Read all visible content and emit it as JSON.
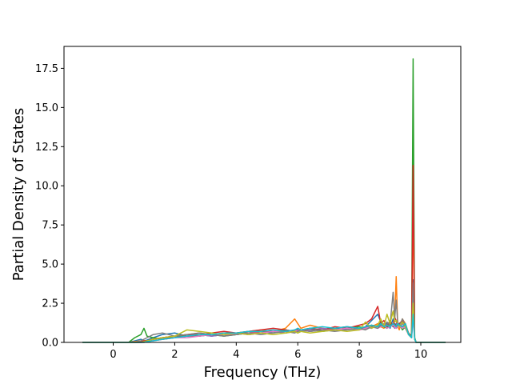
{
  "chart_data": {
    "type": "line",
    "title": "",
    "xlabel": "Frequency (THz)",
    "ylabel": "Partial Density of States",
    "xlim": [
      -1.6,
      11.3
    ],
    "ylim": [
      0,
      18.9
    ],
    "x_ticks": [
      0,
      2,
      4,
      6,
      8,
      10
    ],
    "y_ticks": [
      0.0,
      2.5,
      5.0,
      7.5,
      10.0,
      12.5,
      15.0,
      17.5
    ],
    "x_tick_labels": [
      "0",
      "2",
      "4",
      "6",
      "8",
      "10"
    ],
    "y_tick_labels": [
      "0.0",
      "2.5",
      "5.0",
      "7.5",
      "10.0",
      "12.5",
      "15.0",
      "17.5"
    ],
    "grid": false,
    "legend": "none",
    "x": [
      -1.0,
      0.5,
      0.7,
      0.9,
      1.0,
      1.1,
      1.3,
      1.6,
      2.0,
      2.4,
      2.8,
      3.2,
      3.6,
      4.0,
      4.4,
      4.8,
      5.2,
      5.6,
      5.9,
      6.0,
      6.1,
      6.4,
      6.8,
      7.2,
      7.6,
      8.0,
      8.2,
      8.4,
      8.6,
      8.7,
      8.8,
      8.9,
      9.0,
      9.1,
      9.15,
      9.2,
      9.25,
      9.3,
      9.4,
      9.5,
      9.6,
      9.7,
      9.75,
      9.8,
      9.85,
      10.0,
      10.4,
      10.8
    ],
    "series": [
      {
        "color": "#1f77b4",
        "values": [
          0,
          0,
          0.1,
          0.2,
          0.1,
          0.15,
          0.3,
          0.5,
          0.6,
          0.4,
          0.5,
          0.4,
          0.5,
          0.5,
          0.6,
          0.7,
          0.6,
          0.8,
          0.7,
          0.7,
          0.8,
          0.7,
          0.8,
          0.9,
          0.8,
          0.9,
          1.0,
          1.4,
          1.8,
          1.3,
          1.0,
          1.2,
          0.9,
          1.5,
          1.0,
          1.2,
          1.0,
          1.1,
          1.3,
          1.0,
          0.5,
          0.3,
          4.0,
          0.2,
          0,
          0,
          0,
          0
        ]
      },
      {
        "color": "#ff7f0e",
        "values": [
          0,
          0,
          0.05,
          0.1,
          0.1,
          0.1,
          0.2,
          0.3,
          0.4,
          0.5,
          0.6,
          0.5,
          0.6,
          0.6,
          0.7,
          0.8,
          0.7,
          0.9,
          1.5,
          1.2,
          0.9,
          1.1,
          0.9,
          0.8,
          0.9,
          0.8,
          0.9,
          1.0,
          1.2,
          1.0,
          0.9,
          1.1,
          1.3,
          2.0,
          1.5,
          4.2,
          1.0,
          0.8,
          1.5,
          1.2,
          0.6,
          0.3,
          9.0,
          0.2,
          0,
          0,
          0,
          0
        ]
      },
      {
        "color": "#2ca02c",
        "values": [
          0,
          0,
          0.3,
          0.5,
          0.9,
          0.4,
          0.3,
          0.2,
          0.3,
          0.5,
          0.4,
          0.5,
          0.4,
          0.5,
          0.6,
          0.6,
          0.7,
          0.6,
          0.7,
          0.6,
          0.7,
          0.8,
          0.7,
          0.8,
          0.9,
          1.0,
          0.9,
          1.1,
          1.0,
          1.2,
          1.0,
          0.9,
          1.2,
          1.0,
          1.1,
          0.9,
          1.0,
          1.2,
          0.8,
          1.0,
          0.6,
          0.4,
          18.1,
          0.3,
          0,
          0,
          0,
          0
        ]
      },
      {
        "color": "#d62728",
        "values": [
          0,
          0,
          0,
          0.05,
          0.1,
          0.1,
          0.2,
          0.3,
          0.4,
          0.5,
          0.5,
          0.6,
          0.7,
          0.6,
          0.7,
          0.8,
          0.9,
          0.8,
          0.7,
          0.8,
          0.7,
          0.9,
          0.8,
          1.0,
          0.9,
          1.1,
          1.2,
          1.5,
          2.3,
          1.2,
          1.4,
          1.0,
          1.3,
          1.1,
          1.6,
          1.4,
          1.0,
          1.2,
          1.4,
          1.0,
          0.5,
          0.3,
          11.3,
          0.2,
          0,
          0,
          0,
          0
        ]
      },
      {
        "color": "#9467bd",
        "values": [
          0,
          0,
          0,
          0,
          0.05,
          0.1,
          0.1,
          0.2,
          0.3,
          0.4,
          0.5,
          0.4,
          0.5,
          0.6,
          0.5,
          0.6,
          0.7,
          0.6,
          0.7,
          0.8,
          0.7,
          0.8,
          0.9,
          0.8,
          0.9,
          0.8,
          1.0,
          0.9,
          1.1,
          1.0,
          1.2,
          1.1,
          1.0,
          1.2,
          0.9,
          1.1,
          1.3,
          1.0,
          1.2,
          0.9,
          0.5,
          0.3,
          2.0,
          0.2,
          0,
          0,
          0,
          0
        ]
      },
      {
        "color": "#8c564b",
        "values": [
          0,
          0,
          0,
          0,
          0.05,
          0.1,
          0.2,
          0.3,
          0.3,
          0.4,
          0.4,
          0.5,
          0.5,
          0.6,
          0.6,
          0.7,
          0.7,
          0.8,
          0.7,
          0.9,
          0.8,
          0.9,
          0.8,
          0.9,
          1.0,
          0.9,
          1.0,
          1.1,
          1.0,
          1.3,
          1.1,
          1.0,
          1.4,
          1.0,
          1.2,
          1.0,
          1.1,
          1.2,
          1.0,
          1.1,
          0.6,
          0.3,
          3.0,
          0.2,
          0,
          0,
          0,
          0
        ]
      },
      {
        "color": "#e377c2",
        "values": [
          0,
          0,
          0,
          0,
          0,
          0.05,
          0.1,
          0.2,
          0.3,
          0.3,
          0.4,
          0.5,
          0.5,
          0.5,
          0.6,
          0.6,
          0.7,
          0.7,
          0.8,
          0.7,
          0.8,
          0.7,
          0.8,
          0.8,
          0.9,
          0.8,
          0.9,
          1.0,
          0.9,
          1.0,
          1.1,
          0.9,
          1.0,
          1.1,
          1.0,
          0.9,
          1.0,
          1.1,
          0.9,
          1.0,
          0.5,
          0.3,
          1.5,
          0.2,
          0,
          0,
          0,
          0
        ]
      },
      {
        "color": "#7f7f7f",
        "values": [
          0,
          0,
          0,
          0.1,
          0.2,
          0.3,
          0.5,
          0.6,
          0.4,
          0.5,
          0.6,
          0.5,
          0.4,
          0.5,
          0.6,
          0.5,
          0.6,
          0.7,
          0.6,
          0.7,
          0.8,
          0.7,
          0.8,
          0.7,
          0.8,
          0.9,
          0.8,
          1.0,
          0.9,
          1.1,
          1.0,
          1.3,
          1.1,
          3.2,
          1.5,
          2.7,
          1.2,
          1.0,
          1.5,
          1.1,
          0.6,
          0.3,
          3.8,
          0.2,
          0,
          0,
          0,
          0
        ]
      },
      {
        "color": "#bcbd22",
        "values": [
          0,
          0,
          0,
          0,
          0.05,
          0.1,
          0.2,
          0.3,
          0.4,
          0.8,
          0.7,
          0.6,
          0.5,
          0.6,
          0.5,
          0.6,
          0.5,
          0.6,
          0.7,
          0.6,
          0.7,
          0.6,
          0.7,
          0.8,
          0.7,
          0.8,
          1.3,
          0.9,
          1.1,
          1.5,
          1.0,
          1.8,
          1.2,
          2.0,
          1.3,
          1.4,
          1.2,
          1.0,
          1.3,
          1.0,
          0.5,
          0.3,
          2.5,
          0.2,
          0,
          0,
          0,
          0
        ]
      },
      {
        "color": "#17becf",
        "values": [
          0,
          0,
          0,
          0,
          0,
          0.05,
          0.1,
          0.2,
          0.3,
          0.4,
          0.5,
          0.5,
          0.6,
          0.6,
          0.7,
          0.7,
          0.8,
          0.7,
          0.8,
          0.9,
          0.8,
          0.9,
          1.0,
          0.9,
          1.0,
          0.9,
          1.0,
          1.1,
          1.0,
          1.2,
          1.0,
          1.1,
          1.0,
          1.2,
          1.1,
          1.0,
          1.2,
          1.1,
          1.0,
          1.2,
          0.5,
          0.3,
          1.8,
          0.2,
          0,
          0,
          0,
          0
        ]
      }
    ]
  }
}
